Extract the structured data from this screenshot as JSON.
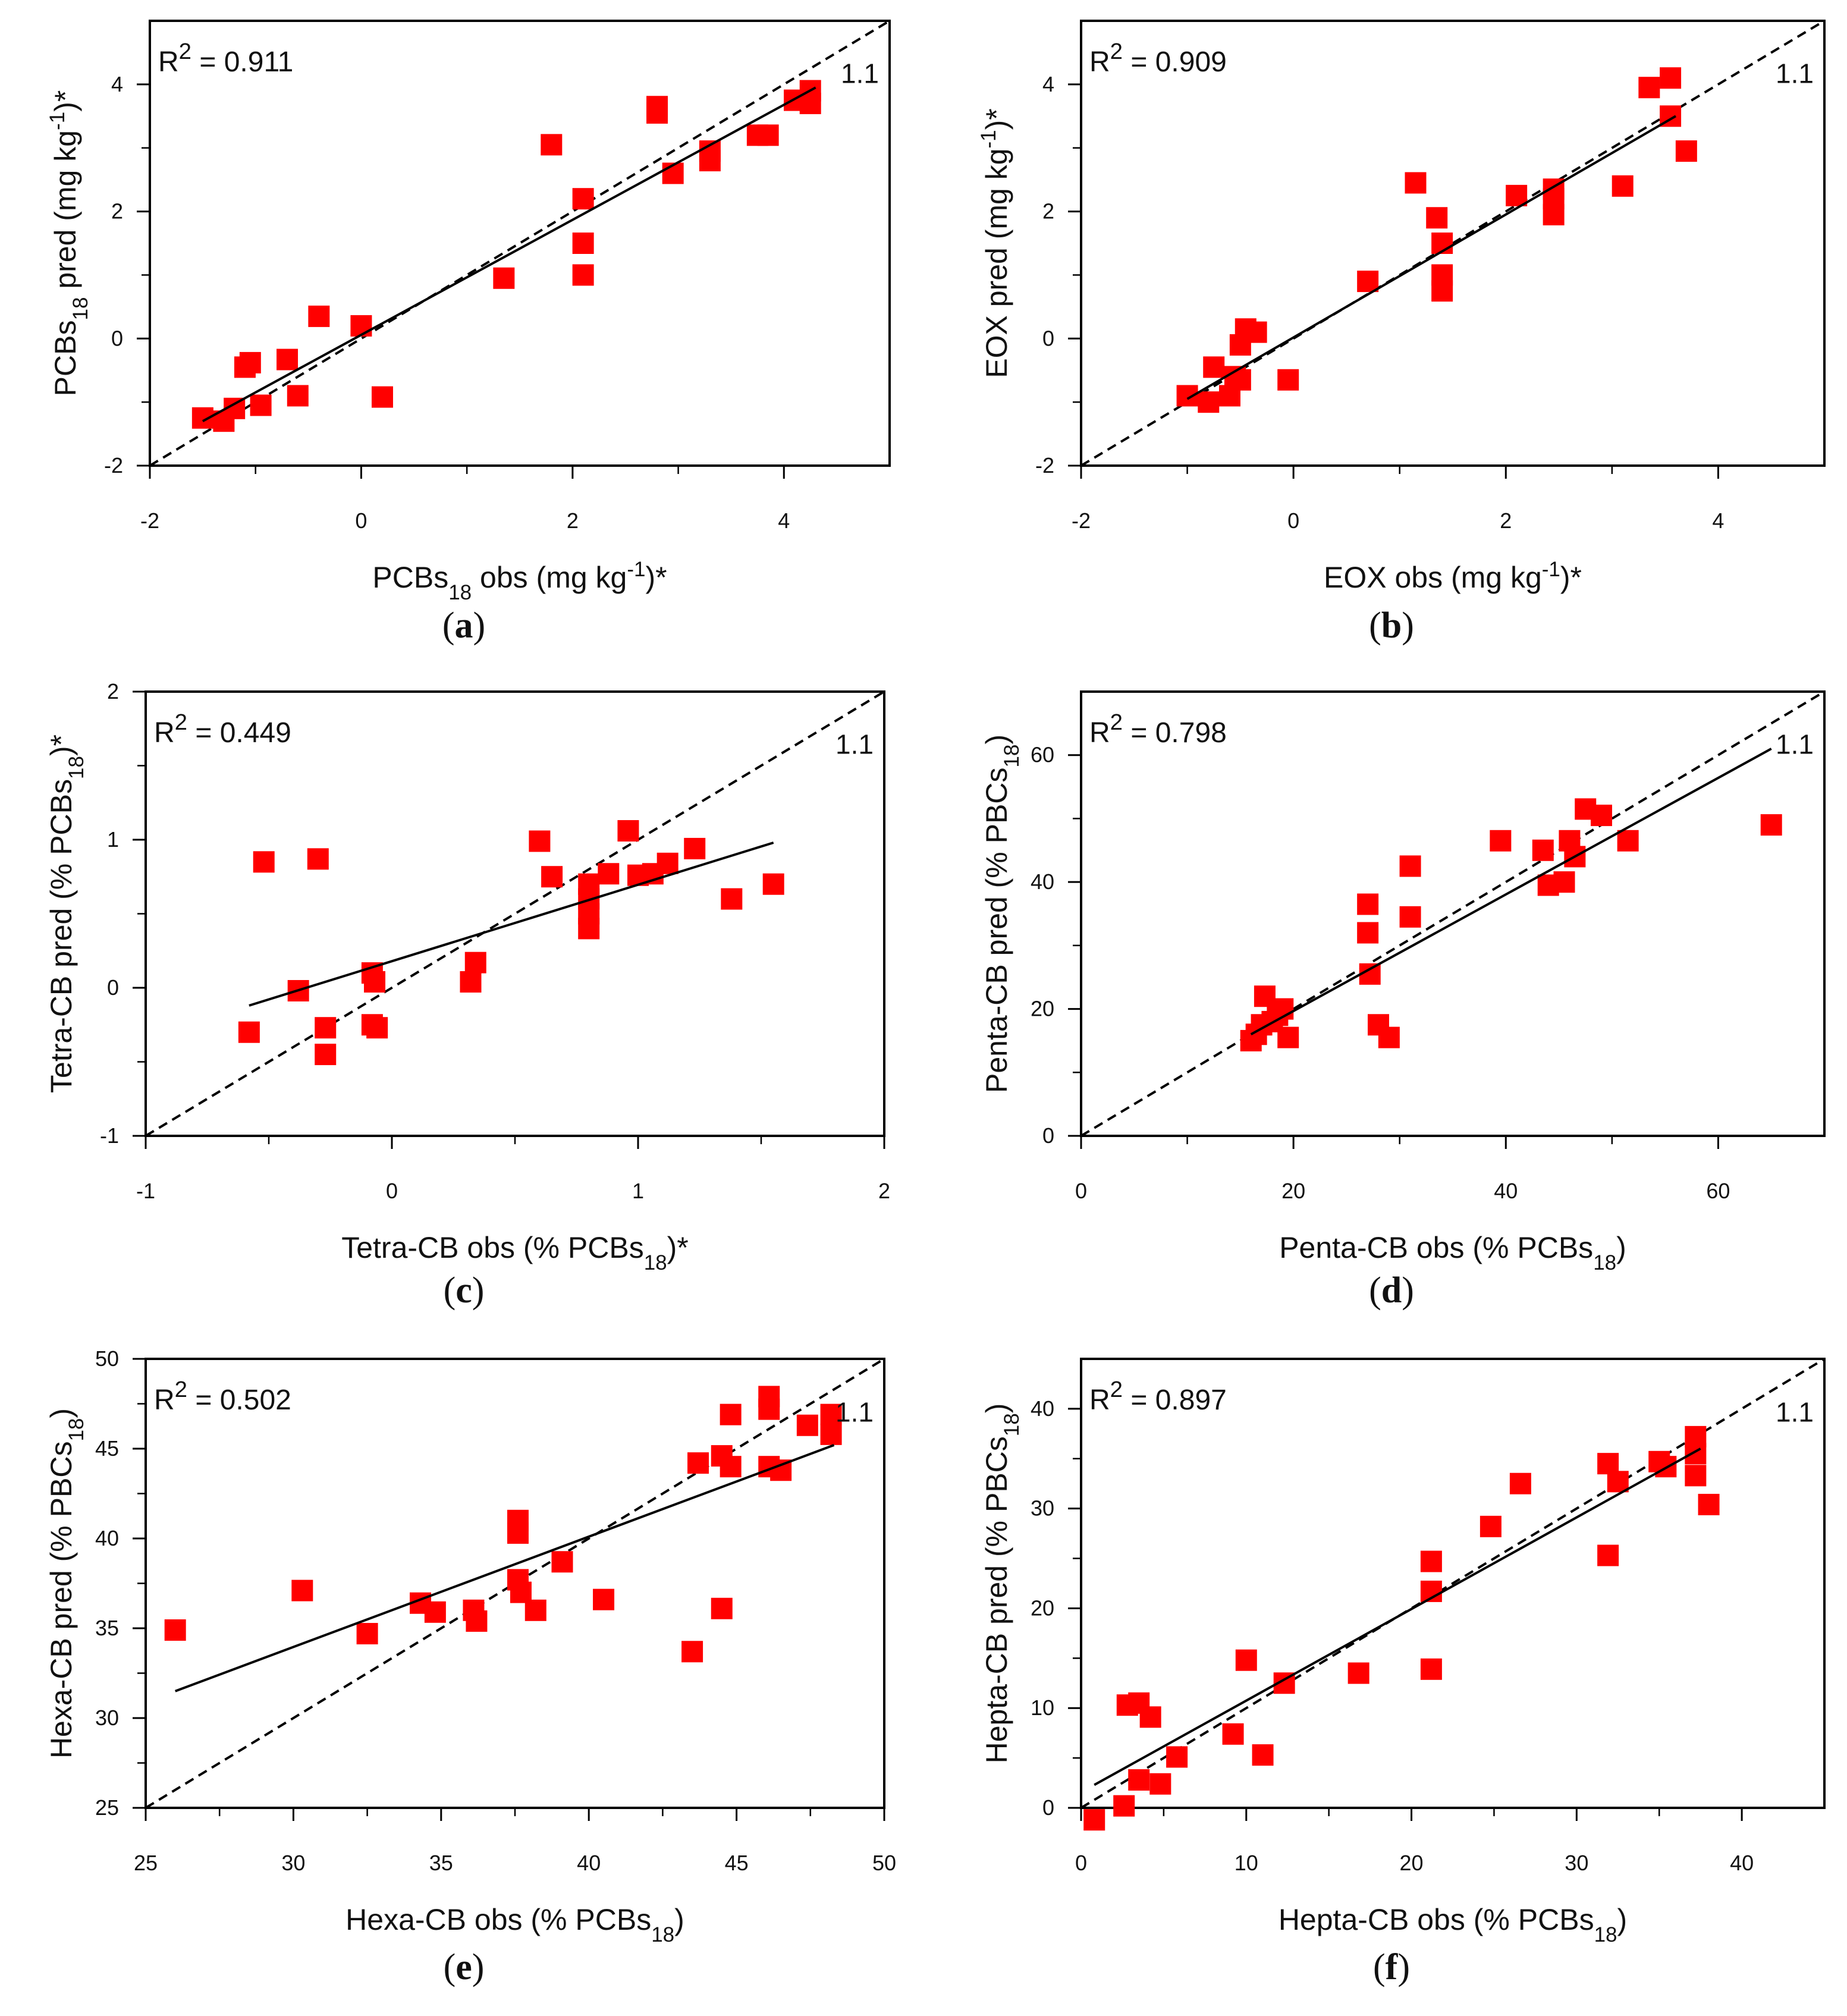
{
  "chart_data": [
    {
      "id": "a",
      "type": "scatter",
      "caption_letter": "a",
      "r2_prefix": "R",
      "r2_sup": "2",
      "r2_value": " = 0.911",
      "one_to_one_label": "1.1",
      "xlabel": {
        "pre": "PCBs",
        "sub": "18",
        "post": " obs (mg kg",
        "sup": "-1",
        "post2": ")*"
      },
      "ylabel": {
        "pre": "PCBs",
        "sub": "18",
        "post": " pred (mg kg",
        "sup": "-1",
        "post2": ")*"
      },
      "xlim": [
        -2,
        5
      ],
      "ylim": [
        -2,
        5
      ],
      "xticks": [
        -2,
        0,
        2,
        4
      ],
      "yticks": [
        -2,
        0,
        2,
        4
      ],
      "xminor": [
        -1,
        1,
        3
      ],
      "yminor": [
        -1,
        1,
        3
      ],
      "fit_line": [
        [
          -1.5,
          -1.3
        ],
        [
          4.3,
          3.95
        ]
      ],
      "points": [
        [
          -1.5,
          -1.25
        ],
        [
          -1.3,
          -1.3
        ],
        [
          -1.2,
          -1.1
        ],
        [
          -1.1,
          -0.45
        ],
        [
          -1.05,
          -0.38
        ],
        [
          -0.95,
          -1.05
        ],
        [
          -0.7,
          -0.33
        ],
        [
          -0.6,
          -0.9
        ],
        [
          -0.4,
          0.35
        ],
        [
          0.0,
          0.2
        ],
        [
          0.2,
          -0.92
        ],
        [
          1.35,
          0.95
        ],
        [
          1.8,
          3.05
        ],
        [
          2.1,
          2.2
        ],
        [
          2.1,
          1.5
        ],
        [
          2.1,
          1.0
        ],
        [
          2.8,
          3.65
        ],
        [
          2.8,
          3.55
        ],
        [
          2.95,
          2.6
        ],
        [
          3.3,
          2.95
        ],
        [
          3.3,
          2.8
        ],
        [
          3.75,
          3.2
        ],
        [
          3.85,
          3.2
        ],
        [
          4.1,
          3.75
        ],
        [
          4.25,
          3.9
        ],
        [
          4.25,
          3.7
        ]
      ]
    },
    {
      "id": "b",
      "type": "scatter",
      "caption_letter": "b",
      "r2_prefix": "R",
      "r2_sup": "2",
      "r2_value": " = 0.909",
      "one_to_one_label": "1.1",
      "xlabel": {
        "pre": "EOX",
        "sub": "",
        "post": " obs (mg kg",
        "sup": "-1",
        "post2": ")*"
      },
      "ylabel": {
        "pre": "EOX",
        "sub": "",
        "post": " pred (mg kg",
        "sup": "-1",
        "post2": ")*"
      },
      "xlim": [
        -2,
        5
      ],
      "ylim": [
        -2,
        5
      ],
      "xticks": [
        -2,
        0,
        2,
        4
      ],
      "yticks": [
        -2,
        0,
        2,
        4
      ],
      "xminor": [
        -1,
        1,
        3
      ],
      "yminor": [
        -1,
        1,
        3
      ],
      "fit_line": [
        [
          -1.0,
          -0.95
        ],
        [
          3.6,
          3.5
        ]
      ],
      "points": [
        [
          -1.0,
          -0.9
        ],
        [
          -0.8,
          -1.0
        ],
        [
          -0.75,
          -0.45
        ],
        [
          -0.6,
          -0.9
        ],
        [
          -0.55,
          -0.6
        ],
        [
          -0.5,
          -0.1
        ],
        [
          -0.45,
          0.15
        ],
        [
          -0.5,
          -0.65
        ],
        [
          -0.35,
          0.1
        ],
        [
          -0.05,
          -0.65
        ],
        [
          0.7,
          0.9
        ],
        [
          1.15,
          2.45
        ],
        [
          1.35,
          1.9
        ],
        [
          1.4,
          1.5
        ],
        [
          1.4,
          1.0
        ],
        [
          1.4,
          0.75
        ],
        [
          2.1,
          2.25
        ],
        [
          2.45,
          2.35
        ],
        [
          2.45,
          2.2
        ],
        [
          2.45,
          1.95
        ],
        [
          3.1,
          2.4
        ],
        [
          3.35,
          3.95
        ],
        [
          3.55,
          4.1
        ],
        [
          3.55,
          3.5
        ],
        [
          3.7,
          2.95
        ]
      ]
    },
    {
      "id": "c",
      "type": "scatter",
      "caption_letter": "c",
      "r2_prefix": "R",
      "r2_sup": "2",
      "r2_value": " = 0.449",
      "one_to_one_label": "1.1",
      "xlabel": {
        "pre": "Tetra-CB obs (% PCBs",
        "sub": "18",
        "post": ")*",
        "sup": "",
        "post2": ""
      },
      "ylabel": {
        "pre": "Tetra-CB pred (% PCBs",
        "sub": "18",
        "post": ")*",
        "sup": "",
        "post2": ""
      },
      "xlim": [
        -1,
        2
      ],
      "ylim": [
        -1,
        2
      ],
      "xticks": [
        -1,
        0,
        1,
        2
      ],
      "yticks": [
        -1,
        0,
        1,
        2
      ],
      "xminor": [
        -0.5,
        0.5,
        1.5
      ],
      "yminor": [
        -0.5,
        0.5,
        1.5
      ],
      "fit_line": [
        [
          -0.58,
          -0.12
        ],
        [
          1.55,
          0.98
        ]
      ],
      "points": [
        [
          -0.58,
          -0.3
        ],
        [
          -0.52,
          0.85
        ],
        [
          -0.38,
          -0.02
        ],
        [
          -0.3,
          0.87
        ],
        [
          -0.27,
          -0.27
        ],
        [
          -0.27,
          -0.45
        ],
        [
          -0.08,
          0.1
        ],
        [
          -0.07,
          0.04
        ],
        [
          -0.08,
          -0.25
        ],
        [
          -0.06,
          -0.27
        ],
        [
          0.32,
          0.04
        ],
        [
          0.34,
          0.17
        ],
        [
          0.6,
          0.99
        ],
        [
          0.65,
          0.75
        ],
        [
          0.8,
          0.7
        ],
        [
          0.8,
          0.6
        ],
        [
          0.8,
          0.5
        ],
        [
          0.8,
          0.4
        ],
        [
          0.88,
          0.77
        ],
        [
          0.96,
          1.06
        ],
        [
          1.0,
          0.76
        ],
        [
          1.06,
          0.77
        ],
        [
          1.12,
          0.84
        ],
        [
          1.23,
          0.94
        ],
        [
          1.38,
          0.6
        ],
        [
          1.55,
          0.7
        ]
      ]
    },
    {
      "id": "d",
      "type": "scatter",
      "caption_letter": "d",
      "r2_prefix": "R",
      "r2_sup": "2",
      "r2_value": " = 0.798",
      "one_to_one_label": "1.1",
      "xlabel": {
        "pre": "Penta-CB obs (% PCBs",
        "sub": "18",
        "post": ")",
        "sup": "",
        "post2": ""
      },
      "ylabel": {
        "pre": "Penta-CB pred (%  PBCs",
        "sub": "18",
        "post": ")",
        "sup": "",
        "post2": ""
      },
      "xlim": [
        0,
        70
      ],
      "ylim": [
        0,
        70
      ],
      "xticks": [
        0,
        20,
        40,
        60
      ],
      "yticks": [
        0,
        20,
        40,
        60
      ],
      "xminor": [
        10,
        30,
        50
      ],
      "yminor": [
        10,
        30,
        50
      ],
      "fit_line": [
        [
          16,
          16
        ],
        [
          65,
          61
        ]
      ],
      "points": [
        [
          16,
          15
        ],
        [
          16.5,
          16
        ],
        [
          17,
          17.5
        ],
        [
          17.3,
          22
        ],
        [
          18,
          18
        ],
        [
          18.5,
          19
        ],
        [
          19,
          20
        ],
        [
          19.5,
          15.5
        ],
        [
          27,
          36.5
        ],
        [
          27,
          32
        ],
        [
          27.2,
          25.5
        ],
        [
          28,
          17.5
        ],
        [
          29,
          15.5
        ],
        [
          31,
          42.5
        ],
        [
          31,
          34.5
        ],
        [
          39.5,
          46.5
        ],
        [
          43.5,
          45
        ],
        [
          44,
          39.5
        ],
        [
          45.5,
          40
        ],
        [
          46,
          46.5
        ],
        [
          46.5,
          44
        ],
        [
          47.5,
          51.5
        ],
        [
          49,
          50.5
        ],
        [
          51.5,
          46.5
        ],
        [
          65,
          49
        ]
      ]
    },
    {
      "id": "e",
      "type": "scatter",
      "caption_letter": "e",
      "r2_prefix": "R",
      "r2_sup": "2",
      "r2_value": " = 0.502",
      "one_to_one_label": "1.1",
      "xlabel": {
        "pre": "Hexa-CB obs (% PCBs",
        "sub": "18",
        "post": ")",
        "sup": "",
        "post2": ""
      },
      "ylabel": {
        "pre": "Hexa-CB pred (%  PBCs",
        "sub": "18",
        "post": ")",
        "sup": "",
        "post2": ""
      },
      "xlim": [
        25,
        50
      ],
      "ylim": [
        25,
        50
      ],
      "xticks": [
        25,
        30,
        35,
        40,
        45,
        50
      ],
      "yticks": [
        25,
        30,
        35,
        40,
        45,
        50
      ],
      "xminor": [
        27.5,
        32.5,
        37.5,
        42.5,
        47.5
      ],
      "yminor": [
        27.5,
        32.5,
        37.5,
        42.5,
        47.5
      ],
      "fit_line": [
        [
          26,
          31.5
        ],
        [
          48.3,
          45.2
        ]
      ],
      "points": [
        [
          26,
          34.9
        ],
        [
          30.3,
          37.1
        ],
        [
          32.5,
          34.7
        ],
        [
          34.3,
          36.4
        ],
        [
          34.8,
          35.9
        ],
        [
          36.1,
          36.0
        ],
        [
          36.2,
          35.4
        ],
        [
          37.6,
          41.0
        ],
        [
          37.6,
          40.3
        ],
        [
          37.6,
          37.7
        ],
        [
          37.7,
          37.0
        ],
        [
          38.2,
          36.0
        ],
        [
          39.1,
          38.7
        ],
        [
          40.5,
          36.6
        ],
        [
          43.5,
          33.7
        ],
        [
          43.7,
          44.2
        ],
        [
          44.5,
          44.6
        ],
        [
          44.5,
          36.1
        ],
        [
          44.8,
          46.9
        ],
        [
          44.8,
          44.0
        ],
        [
          46.1,
          47.9
        ],
        [
          46.1,
          47.2
        ],
        [
          46.1,
          44.0
        ],
        [
          46.5,
          43.8
        ],
        [
          47.4,
          46.3
        ],
        [
          48.2,
          46.9
        ],
        [
          48.2,
          45.8
        ]
      ]
    },
    {
      "id": "f",
      "type": "scatter",
      "caption_letter": "f",
      "r2_prefix": "R",
      "r2_sup": "2",
      "r2_value": " = 0.897",
      "one_to_one_label": "1.1",
      "xlabel": {
        "pre": "Hepta-CB obs (% PCBs",
        "sub": "18",
        "post": ")",
        "sup": "",
        "post2": ""
      },
      "ylabel": {
        "pre": "Hepta-CB pred (%  PBCs",
        "sub": "18",
        "post": ")",
        "sup": "",
        "post2": ""
      },
      "xlim": [
        0,
        45
      ],
      "ylim": [
        0,
        45
      ],
      "xticks": [
        0,
        10,
        20,
        30,
        40
      ],
      "yticks": [
        0,
        10,
        20,
        30,
        40
      ],
      "xminor": [
        5,
        15,
        25,
        35
      ],
      "yminor": [
        5,
        15,
        25,
        35
      ],
      "fit_line": [
        [
          0.8,
          2.3
        ],
        [
          37.5,
          36.0
        ]
      ],
      "points": [
        [
          0.8,
          -1.2
        ],
        [
          2.6,
          0.2
        ],
        [
          2.8,
          10.3
        ],
        [
          3.5,
          10.5
        ],
        [
          3.5,
          2.8
        ],
        [
          4.2,
          9.1
        ],
        [
          4.8,
          2.4
        ],
        [
          5.8,
          5.1
        ],
        [
          9.2,
          7.4
        ],
        [
          10.0,
          14.8
        ],
        [
          11.0,
          5.3
        ],
        [
          12.3,
          12.5
        ],
        [
          16.8,
          13.5
        ],
        [
          21.2,
          24.7
        ],
        [
          21.2,
          21.7
        ],
        [
          21.2,
          13.9
        ],
        [
          24.8,
          28.2
        ],
        [
          26.6,
          32.5
        ],
        [
          31.9,
          34.5
        ],
        [
          31.9,
          25.3
        ],
        [
          32.5,
          32.7
        ],
        [
          35.0,
          34.7
        ],
        [
          35.4,
          34.2
        ],
        [
          37.2,
          37.2
        ],
        [
          37.2,
          35.5
        ],
        [
          37.2,
          33.3
        ],
        [
          38.0,
          30.4
        ]
      ]
    }
  ]
}
